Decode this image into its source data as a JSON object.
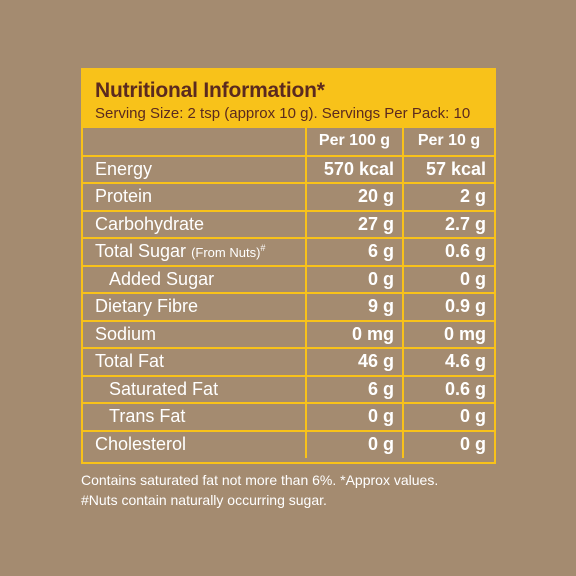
{
  "panel": {
    "title": "Nutritional Information*",
    "serving": "Serving Size: 2 tsp (approx 10 g). Servings Per Pack: 10"
  },
  "table": {
    "col_per100": "Per 100 g",
    "col_per10": "Per 10 g",
    "rows": [
      {
        "name": "Energy",
        "per100": "570 kcal",
        "per10": "57 kcal"
      },
      {
        "name": "Protein",
        "per100": "20 g",
        "per10": "2 g"
      },
      {
        "name": "Carbohydrate",
        "per100": "27 g",
        "per10": "2.7 g"
      },
      {
        "name": "Total Sugar",
        "note": "(From Nuts)",
        "mark": "#",
        "per100": "6 g",
        "per10": "0.6 g"
      },
      {
        "name": "Added Sugar",
        "per100": "0 g",
        "per10": "0 g"
      },
      {
        "name": "Dietary Fibre",
        "per100": "9 g",
        "per10": "0.9 g"
      },
      {
        "name": "Sodium",
        "per100": "0 mg",
        "per10": "0 mg"
      },
      {
        "name": "Total Fat",
        "per100": "46 g",
        "per10": "4.6 g"
      },
      {
        "name": "Saturated Fat",
        "per100": "6 g",
        "per10": "0.6 g"
      },
      {
        "name": "Trans Fat",
        "per100": "0 g",
        "per10": "0 g"
      },
      {
        "name": "Cholesterol",
        "per100": "0 g",
        "per10": "0 g"
      }
    ]
  },
  "footer": {
    "line1": "Contains saturated fat not more than 6%. *Approx values.",
    "line2": "#Nuts contain naturally occurring sugar."
  },
  "colors": {
    "background": "#a48b70",
    "accent": "#f8c21a",
    "title_text": "#5b2a1f"
  }
}
